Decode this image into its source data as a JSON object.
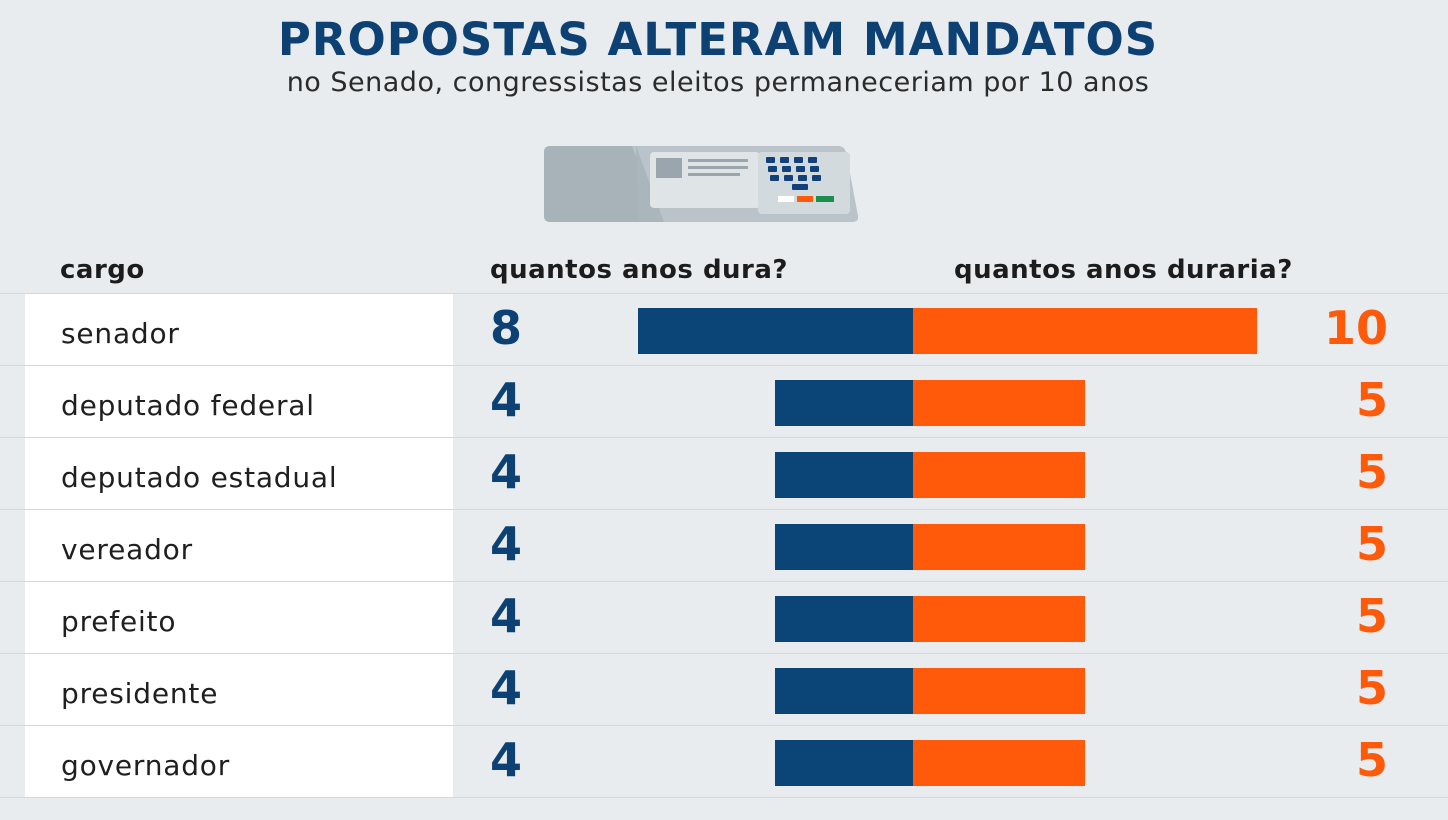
{
  "chart_data": {
    "type": "bar",
    "title": "PROPOSTAS ALTERAM MANDATOS",
    "subtitle": "no Senado, congressistas eleitos permaneceriam por 10 anos",
    "columns": {
      "category": "cargo",
      "current": "quantos anos dura?",
      "proposed": "quantos anos duraria?"
    },
    "categories": [
      "senador",
      "deputado federal",
      "deputado estadual",
      "vereador",
      "prefeito",
      "presidente",
      "governador"
    ],
    "series": [
      {
        "name": "quantos anos dura?",
        "values": [
          8,
          4,
          4,
          4,
          4,
          4,
          4
        ],
        "color": "#0b4476"
      },
      {
        "name": "quantos anos duraria?",
        "values": [
          10,
          5,
          5,
          5,
          5,
          5,
          5
        ],
        "color": "#ff5a0a"
      }
    ],
    "icon": "voting-machine-icon",
    "colors": {
      "title": "#0d4173",
      "current": "#0b4476",
      "proposed": "#ff5a0a",
      "background": "#e8ecef"
    }
  }
}
